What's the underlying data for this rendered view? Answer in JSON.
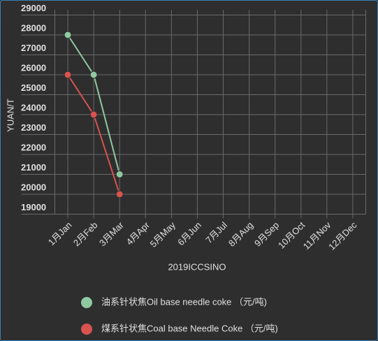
{
  "chart_data": {
    "type": "line",
    "categories": [
      "1月Jan",
      "2月Feb",
      "3月Mar",
      "4月Apr",
      "5月May",
      "6月Jun",
      "7月Jul",
      "8月Aug",
      "9月Sep",
      "10月Oct",
      "11月Nov",
      "12月Dec"
    ],
    "series": [
      {
        "name": "油系针状焦Oil base needle coke （元/吨)",
        "color": "#8fc9a0",
        "values": [
          28000,
          26000,
          21000,
          null,
          null,
          null,
          null,
          null,
          null,
          null,
          null,
          null
        ]
      },
      {
        "name": "煤系针状焦Coal base Needle Coke （元/吨)",
        "color": "#d9534f",
        "values": [
          26000,
          24000,
          20000,
          null,
          null,
          null,
          null,
          null,
          null,
          null,
          null,
          null
        ]
      }
    ],
    "ylabel": "YUAN/T",
    "xlabel": "2019ICCSINO",
    "ylim": [
      19000,
      29000
    ],
    "yticks": [
      19000,
      20000,
      21000,
      22000,
      23000,
      24000,
      25000,
      26000,
      27000,
      28000,
      29000
    ],
    "grid": true
  }
}
